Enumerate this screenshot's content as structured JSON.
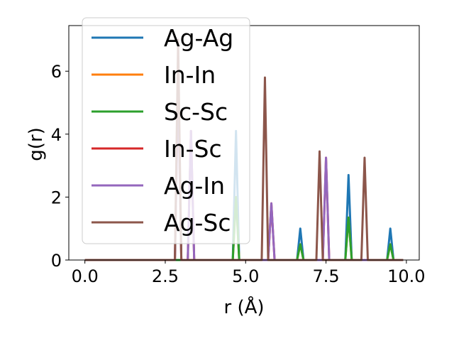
{
  "chart_data": {
    "type": "line",
    "xlabel": "r (Å)",
    "ylabel": "g(r)",
    "xlim": [
      -0.5,
      10.4
    ],
    "ylim": [
      0,
      7.45
    ],
    "xticks": [
      0.0,
      2.5,
      5.0,
      7.5,
      10.0
    ],
    "xtick_labels": [
      "0.0",
      "2.5",
      "5.0",
      "7.5",
      "10.0"
    ],
    "yticks": [
      0,
      2,
      4,
      6
    ],
    "ytick_labels": [
      "0",
      "2",
      "4",
      "6"
    ],
    "legend_position": "upper-left",
    "grid": false,
    "series": [
      {
        "name": "Ag-Ag",
        "color": "#1f77b4",
        "peaks": [
          [
            4.7,
            4.1
          ],
          [
            6.7,
            1.0
          ],
          [
            8.2,
            2.7
          ],
          [
            9.5,
            1.0
          ]
        ]
      },
      {
        "name": "In-In",
        "color": "#ff7f0e",
        "peaks": [
          [
            4.7,
            2.0
          ],
          [
            6.7,
            0.5
          ],
          [
            8.2,
            1.35
          ],
          [
            9.5,
            0.5
          ]
        ]
      },
      {
        "name": "Sc-Sc",
        "color": "#2ca02c",
        "peaks": [
          [
            4.7,
            2.0
          ],
          [
            6.7,
            0.5
          ],
          [
            8.2,
            1.35
          ],
          [
            9.5,
            0.5
          ]
        ]
      },
      {
        "name": "In-Sc",
        "color": "#d62728",
        "peaks": [
          [
            2.9,
            5.6
          ],
          [
            3.3,
            4.1
          ],
          [
            5.8,
            1.8
          ],
          [
            7.5,
            3.25
          ]
        ]
      },
      {
        "name": "Ag-In",
        "color": "#9467bd",
        "peaks": [
          [
            2.9,
            5.6
          ],
          [
            3.3,
            4.1
          ],
          [
            5.8,
            1.8
          ],
          [
            7.5,
            3.25
          ]
        ]
      },
      {
        "name": "Ag-Sc",
        "color": "#8c564b",
        "peaks": [
          [
            2.9,
            7.0
          ],
          [
            5.6,
            5.8
          ],
          [
            7.3,
            3.45
          ],
          [
            8.7,
            3.25
          ]
        ]
      }
    ]
  }
}
